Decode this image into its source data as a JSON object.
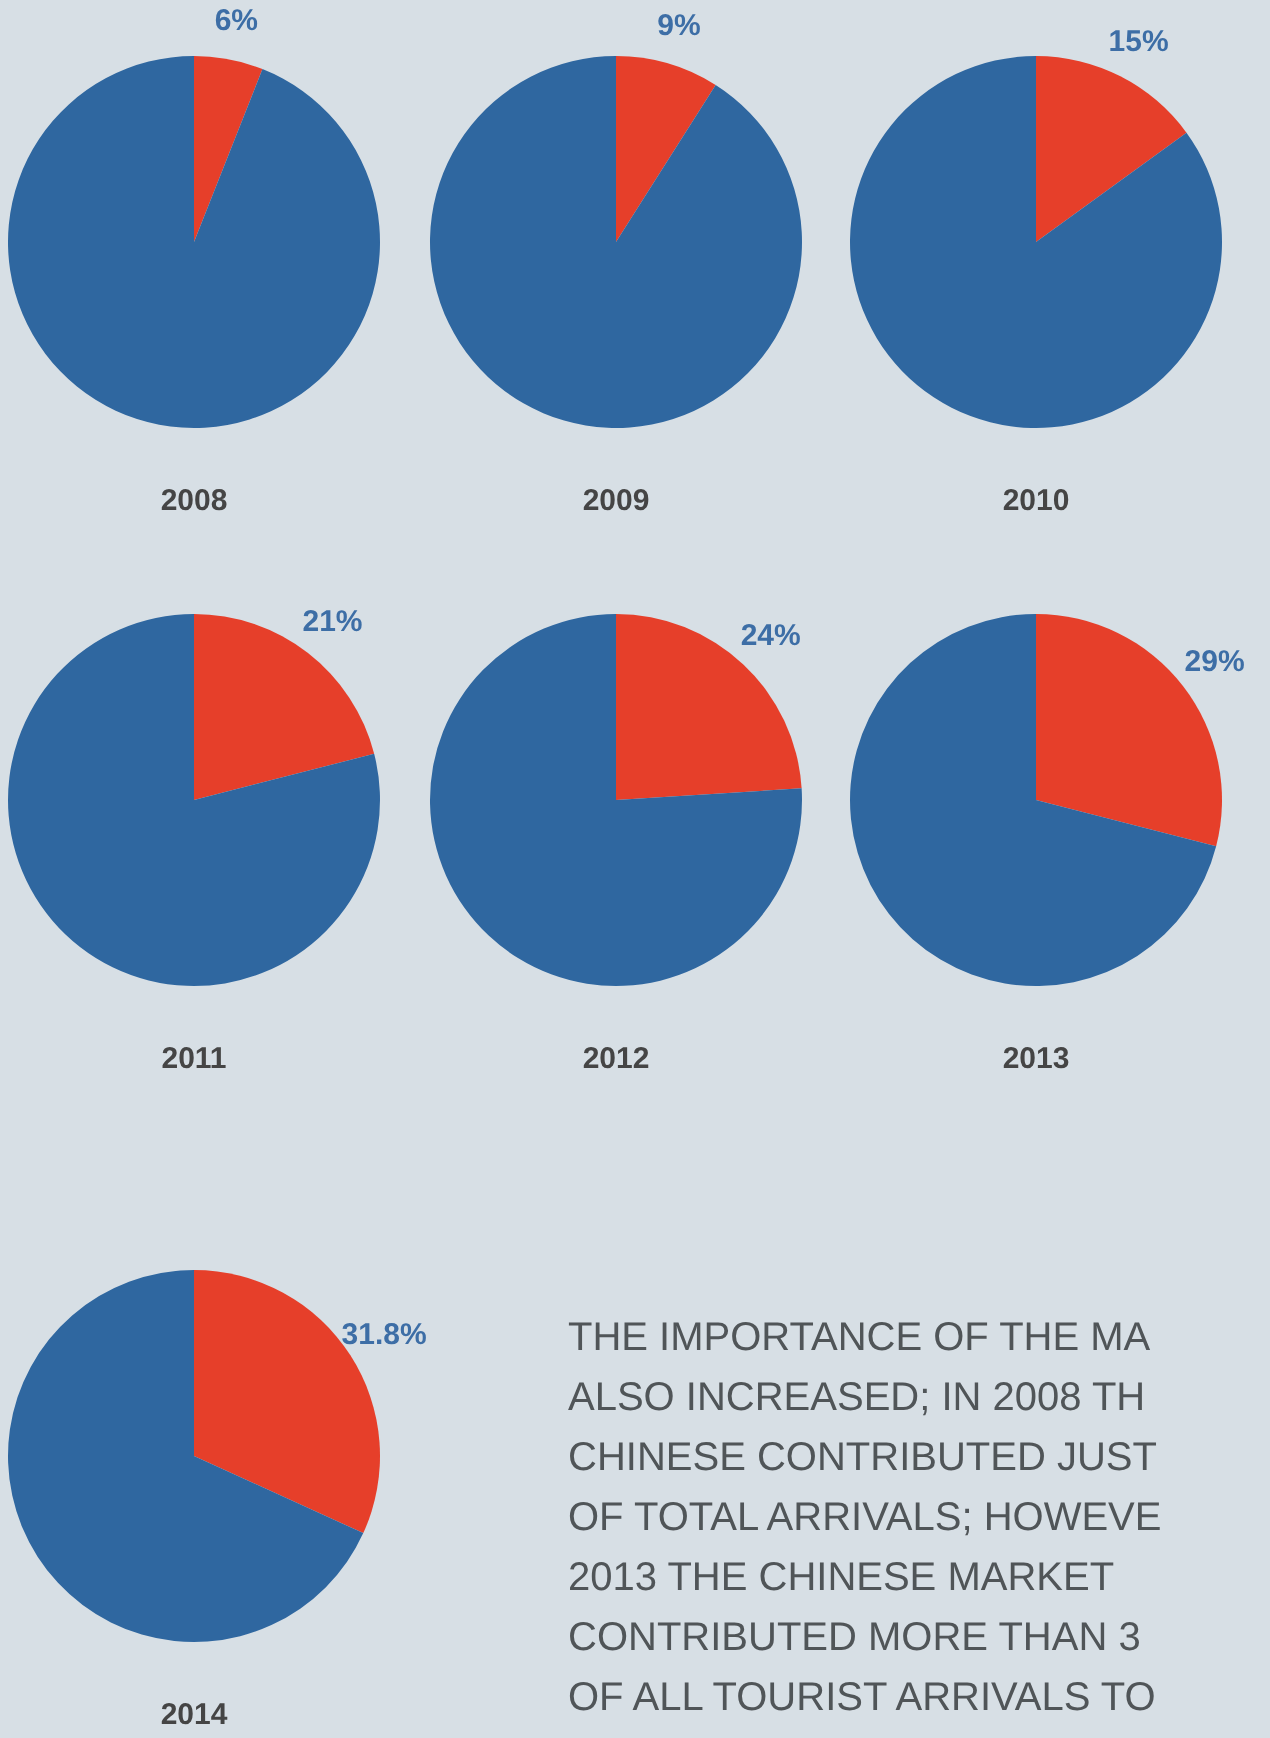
{
  "chart_data": [
    {
      "type": "pie",
      "title": "2008",
      "categories": [
        null,
        null
      ],
      "values": [
        6,
        94
      ],
      "colors": [
        "#e63f2a",
        "#2f67a0"
      ],
      "value_labels": [
        "6%",
        null
      ]
    },
    {
      "type": "pie",
      "title": "2009",
      "categories": [
        null,
        null
      ],
      "values": [
        9,
        91
      ],
      "colors": [
        "#e63f2a",
        "#2f67a0"
      ],
      "value_labels": [
        "9%",
        null
      ]
    },
    {
      "type": "pie",
      "title": "2010",
      "categories": [
        null,
        null
      ],
      "values": [
        15,
        85
      ],
      "colors": [
        "#e63f2a",
        "#2f67a0"
      ],
      "value_labels": [
        "15%",
        null
      ]
    },
    {
      "type": "pie",
      "title": "2011",
      "categories": [
        null,
        null
      ],
      "values": [
        21,
        79
      ],
      "colors": [
        "#e63f2a",
        "#2f67a0"
      ],
      "value_labels": [
        "21%",
        null
      ]
    },
    {
      "type": "pie",
      "title": "2012",
      "categories": [
        null,
        null
      ],
      "values": [
        24,
        76
      ],
      "colors": [
        "#e63f2a",
        "#2f67a0"
      ],
      "value_labels": [
        "24%",
        null
      ]
    },
    {
      "type": "pie",
      "title": "2013",
      "categories": [
        null,
        null
      ],
      "values": [
        29,
        71
      ],
      "colors": [
        "#e63f2a",
        "#2f67a0"
      ],
      "value_labels": [
        "29%",
        null
      ]
    },
    {
      "type": "pie",
      "title": "2014",
      "categories": [
        null,
        null
      ],
      "values": [
        31.8,
        68.2
      ],
      "colors": [
        "#e63f2a",
        "#2f67a0"
      ],
      "value_labels": [
        "31.8%",
        null
      ]
    },
    {
      "type": "other",
      "annotations": [
        "THE IMPORTANCE OF THE MA",
        "ALSO INCREASED; IN 2008 TH",
        "CHINESE CONTRIBUTED JUST",
        "OF TOTAL ARRIVALS; HOWEVE",
        "2013 THE CHINESE MARKET",
        "CONTRIBUTED MORE THAN 3",
        "OF ALL TOURIST ARRIVALS TO"
      ]
    }
  ]
}
